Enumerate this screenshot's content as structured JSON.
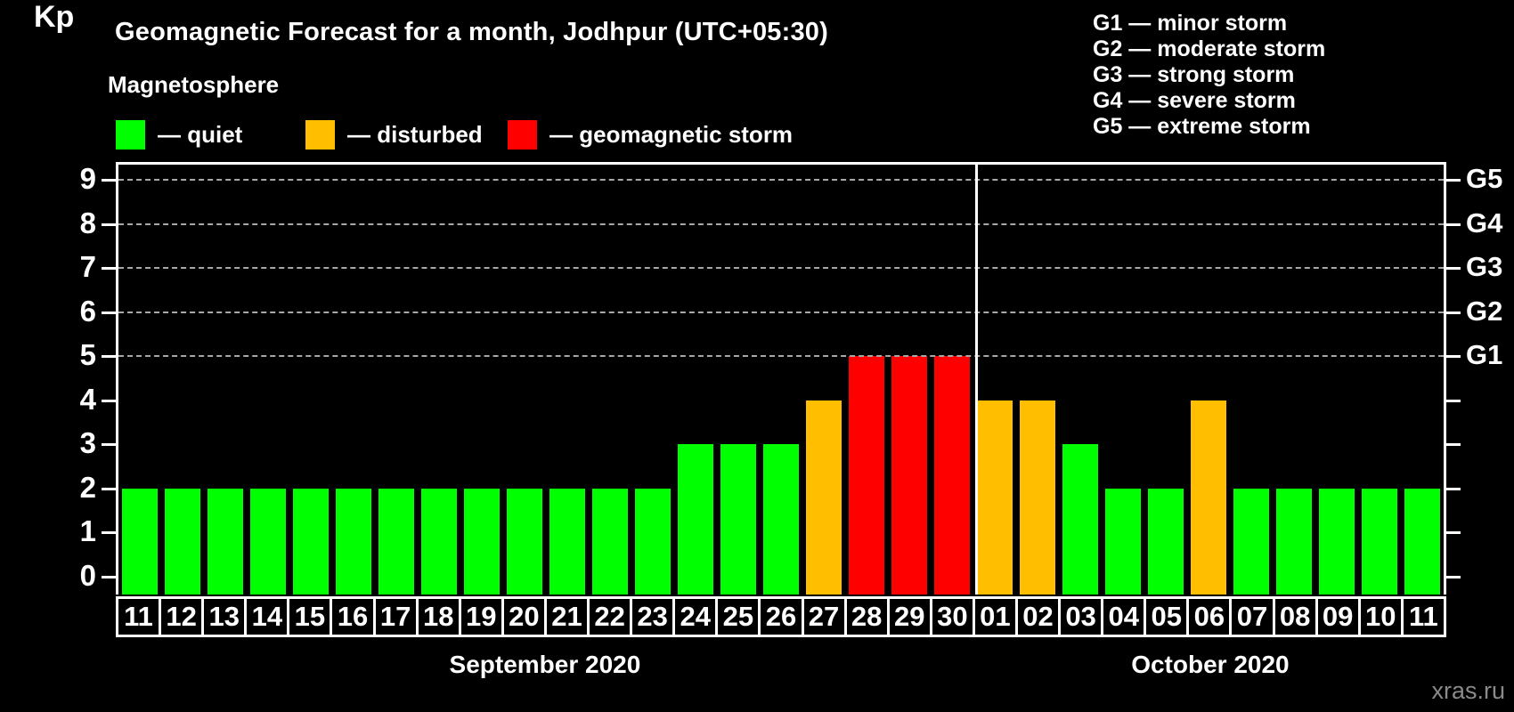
{
  "title": "Geomagnetic Forecast for a month, Jodhpur (UTC+05:30)",
  "subtitle": "Magnetosphere",
  "legend": {
    "items": [
      {
        "id": "quiet",
        "label": "— quiet",
        "color": "#00ff00"
      },
      {
        "id": "disturbed",
        "label": "— disturbed",
        "color": "#ffbe00"
      },
      {
        "id": "storm",
        "label": "— geomagnetic storm",
        "color": "#ff0000"
      }
    ]
  },
  "g_legend": {
    "lines": [
      "G1 — minor storm",
      "G2 — moderate storm",
      "G3 — strong storm",
      "G4 — severe storm",
      "G5 — extreme storm"
    ]
  },
  "axis": {
    "y_label": "Kp",
    "y_ticks": [
      0,
      1,
      2,
      3,
      4,
      5,
      6,
      7,
      8,
      9
    ],
    "right_ticks": [
      {
        "kp": 5,
        "label": "G1"
      },
      {
        "kp": 6,
        "label": "G2"
      },
      {
        "kp": 7,
        "label": "G3"
      },
      {
        "kp": 8,
        "label": "G4"
      },
      {
        "kp": 9,
        "label": "G5"
      }
    ]
  },
  "chart_data": {
    "type": "bar",
    "title": "Geomagnetic Forecast for a month, Jodhpur (UTC+05:30)",
    "ylabel": "Kp",
    "ylim": [
      0,
      9
    ],
    "grid": "dashed horizontal lines at Kp 5-9 (G1-G5 levels)",
    "legend_position": "top-left and top-right",
    "categories": [
      "11",
      "12",
      "13",
      "14",
      "15",
      "16",
      "17",
      "18",
      "19",
      "20",
      "21",
      "22",
      "23",
      "24",
      "25",
      "26",
      "27",
      "28",
      "29",
      "30",
      "01",
      "02",
      "03",
      "04",
      "05",
      "06",
      "07",
      "08",
      "09",
      "10",
      "11"
    ],
    "values": [
      2,
      2,
      2,
      2,
      2,
      2,
      2,
      2,
      2,
      2,
      2,
      2,
      2,
      3,
      3,
      3,
      4,
      5,
      5,
      5,
      4,
      4,
      3,
      2,
      2,
      4,
      2,
      2,
      2,
      2,
      2
    ],
    "color_rule": {
      "quiet": "Kp <= 3",
      "disturbed": "Kp = 4",
      "storm": "Kp >= 5"
    },
    "months": [
      {
        "label": "September 2020",
        "days": 20
      },
      {
        "label": "October 2020",
        "days": 11
      }
    ]
  },
  "watermark": "xras.ru"
}
